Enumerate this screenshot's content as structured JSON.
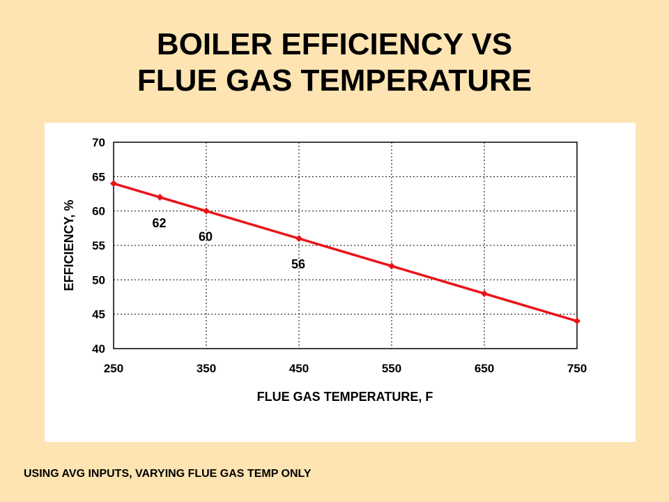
{
  "slide": {
    "title_line1": "BOILER EFFICIENCY VS",
    "title_line2": "FLUE GAS TEMPERATURE",
    "footnote": "USING AVG INPUTS, VARYING FLUE GAS TEMP ONLY"
  },
  "chart_data": {
    "type": "line",
    "title": "",
    "xlabel": "FLUE GAS TEMPERATURE, F",
    "ylabel": "EFFICIENCY, %",
    "xlim": [
      250,
      750
    ],
    "ylim": [
      40,
      70
    ],
    "xticks": [
      "250",
      "350",
      "450",
      "550",
      "650",
      "750"
    ],
    "yticks": [
      "40",
      "45",
      "50",
      "55",
      "60",
      "65",
      "70"
    ],
    "grid": true,
    "legend": "none",
    "series": [
      {
        "color": "#e8141a",
        "x": [
          250,
          300,
          350,
          450,
          550,
          650,
          750
        ],
        "y": [
          64,
          62,
          60,
          56,
          52,
          48,
          44
        ]
      }
    ],
    "data_labels": [
      {
        "x": 300,
        "y": 62,
        "text": "62"
      },
      {
        "x": 350,
        "y": 60,
        "text": "60"
      },
      {
        "x": 450,
        "y": 56,
        "text": "56"
      }
    ]
  }
}
